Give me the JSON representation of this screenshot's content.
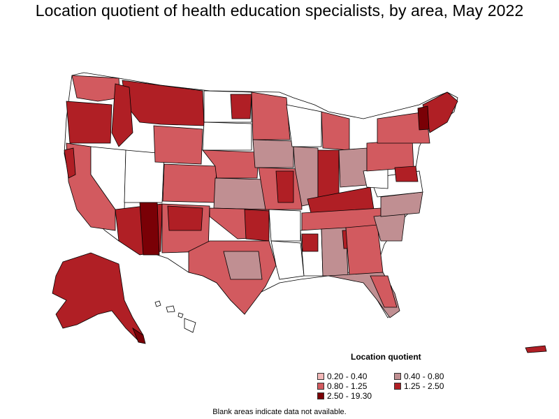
{
  "title": "Location quotient of health education specialists, by area, May 2022",
  "legend": {
    "title": "Location quotient",
    "items": [
      {
        "label": "0.20 - 0.40",
        "color": "#f2b8b8"
      },
      {
        "label": "0.40 - 0.80",
        "color": "#c08f92"
      },
      {
        "label": "0.80 - 1.25",
        "color": "#d25a5f"
      },
      {
        "label": "1.25 - 2.50",
        "color": "#b01f25"
      },
      {
        "label": "2.50 - 19.30",
        "color": "#7a0006"
      }
    ]
  },
  "footnote": "Blank areas indicate data not available.",
  "colors": {
    "blank": "#ffffff",
    "border": "#000000"
  }
}
